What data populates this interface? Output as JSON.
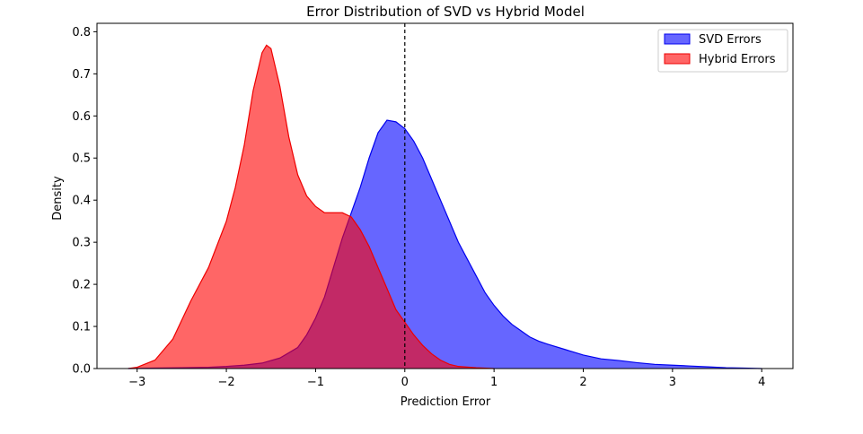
{
  "chart_data": {
    "type": "area",
    "title": "Error Distribution of SVD vs Hybrid Model",
    "xlabel": "Prediction Error",
    "ylabel": "Density",
    "xlim": [
      -3.45,
      4.35
    ],
    "ylim": [
      0,
      0.82
    ],
    "xticks": [
      -3,
      -2,
      -1,
      0,
      1,
      2,
      3,
      4
    ],
    "yticks": [
      0.0,
      0.1,
      0.2,
      0.3,
      0.4,
      0.5,
      0.6,
      0.7,
      0.8
    ],
    "grid": false,
    "legend_position": "top-right",
    "reference_line": {
      "x": 0,
      "style": "dashed",
      "color": "#000000"
    },
    "series": [
      {
        "name": "SVD Errors",
        "fill": "#0000ff",
        "stroke": "#0000ee",
        "opacity": 0.6,
        "x": [
          -3.1,
          -2.8,
          -2.5,
          -2.2,
          -2.0,
          -1.8,
          -1.6,
          -1.4,
          -1.2,
          -1.1,
          -1.0,
          -0.9,
          -0.8,
          -0.7,
          -0.6,
          -0.5,
          -0.4,
          -0.3,
          -0.2,
          -0.1,
          0.0,
          0.1,
          0.2,
          0.3,
          0.4,
          0.5,
          0.6,
          0.7,
          0.8,
          0.9,
          1.0,
          1.1,
          1.2,
          1.3,
          1.4,
          1.5,
          1.6,
          1.8,
          2.0,
          2.2,
          2.4,
          2.6,
          2.8,
          3.0,
          3.2,
          3.4,
          3.6,
          3.8,
          4.0
        ],
        "y": [
          0.0,
          0.001,
          0.002,
          0.003,
          0.005,
          0.008,
          0.013,
          0.025,
          0.05,
          0.08,
          0.12,
          0.17,
          0.24,
          0.31,
          0.37,
          0.43,
          0.5,
          0.56,
          0.59,
          0.586,
          0.57,
          0.54,
          0.5,
          0.45,
          0.4,
          0.35,
          0.3,
          0.26,
          0.22,
          0.18,
          0.15,
          0.125,
          0.105,
          0.09,
          0.075,
          0.065,
          0.058,
          0.045,
          0.032,
          0.023,
          0.019,
          0.014,
          0.01,
          0.008,
          0.006,
          0.004,
          0.002,
          0.001,
          0.0
        ]
      },
      {
        "name": "Hybrid Errors",
        "fill": "#ff0000",
        "stroke": "#ee0000",
        "opacity": 0.6,
        "x": [
          -3.1,
          -3.0,
          -2.8,
          -2.6,
          -2.4,
          -2.2,
          -2.0,
          -1.9,
          -1.8,
          -1.7,
          -1.6,
          -1.55,
          -1.5,
          -1.4,
          -1.3,
          -1.2,
          -1.1,
          -1.0,
          -0.9,
          -0.8,
          -0.7,
          -0.6,
          -0.5,
          -0.4,
          -0.3,
          -0.2,
          -0.1,
          0.0,
          0.1,
          0.2,
          0.3,
          0.4,
          0.5,
          0.6,
          0.8,
          1.0
        ],
        "y": [
          0.0,
          0.003,
          0.02,
          0.07,
          0.16,
          0.24,
          0.35,
          0.43,
          0.53,
          0.66,
          0.75,
          0.768,
          0.76,
          0.67,
          0.55,
          0.46,
          0.41,
          0.385,
          0.37,
          0.37,
          0.37,
          0.36,
          0.33,
          0.29,
          0.24,
          0.19,
          0.14,
          0.11,
          0.08,
          0.055,
          0.035,
          0.02,
          0.01,
          0.005,
          0.002,
          0.0
        ]
      }
    ]
  }
}
